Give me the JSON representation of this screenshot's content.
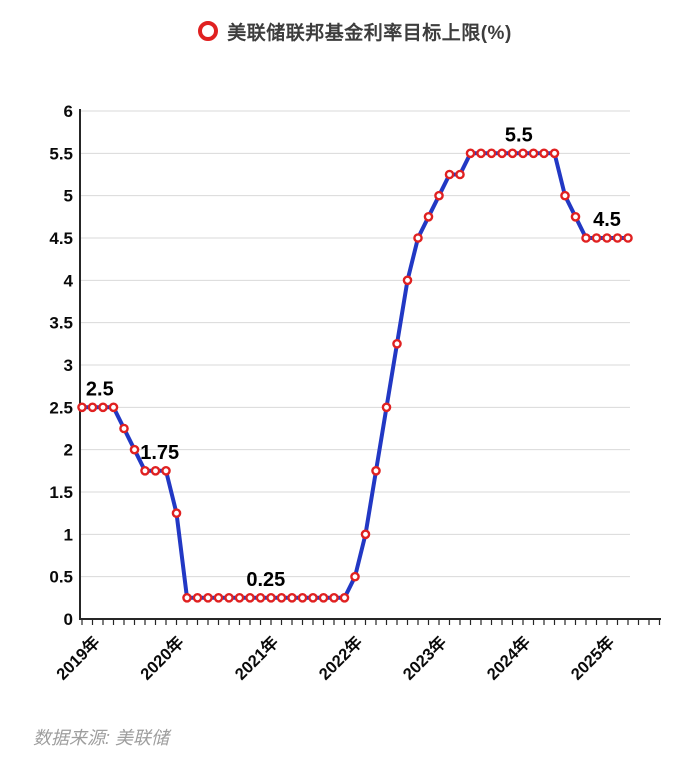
{
  "header": {
    "title": "美联储联邦基金利率目标上限(%)"
  },
  "footer": {
    "source": "数据来源: 美联储"
  },
  "chart_data": {
    "type": "line",
    "title": "美联储联邦基金利率目标上限(%)",
    "legend_position": "top",
    "grid": true,
    "ylim": [
      0,
      6
    ],
    "y_tick_step": 0.5,
    "y_tick_labels": [
      "0",
      "0.5",
      "1",
      "1.5",
      "2",
      "2.5",
      "3",
      "3.5",
      "4",
      "4.5",
      "5",
      "5.5",
      "6"
    ],
    "series": [
      {
        "name": "美联储联邦基金利率目标上限(%)",
        "values": [
          2.5,
          2.5,
          2.5,
          2.5,
          2.25,
          2,
          1.75,
          1.75,
          1.75,
          1.25,
          0.25,
          0.25,
          0.25,
          0.25,
          0.25,
          0.25,
          0.25,
          0.25,
          0.25,
          0.25,
          0.25,
          0.25,
          0.25,
          0.25,
          0.25,
          0.25,
          0.5,
          1,
          1.75,
          2.5,
          3.25,
          4,
          4.5,
          4.75,
          5,
          5.25,
          5.25,
          5.5,
          5.5,
          5.5,
          5.5,
          5.5,
          5.5,
          5.5,
          5.5,
          5.5,
          5,
          4.75,
          4.5,
          4.5,
          4.5,
          4.5,
          4.5
        ]
      }
    ],
    "x_year_ticks": [
      {
        "label": "2019年",
        "index": 0
      },
      {
        "label": "2020年",
        "index": 8
      },
      {
        "label": "2021年",
        "index": 17
      },
      {
        "label": "2022年",
        "index": 25
      },
      {
        "label": "2023年",
        "index": 33
      },
      {
        "label": "2024年",
        "index": 41
      },
      {
        "label": "2025年",
        "index": 49
      }
    ],
    "annotations": [
      {
        "text": "2.5",
        "at_index": 1.7,
        "value": 2.5
      },
      {
        "text": "1.75",
        "at_index": 7.4,
        "value": 1.75
      },
      {
        "text": "0.25",
        "at_index": 17.5,
        "value": 0.25
      },
      {
        "text": "5.5",
        "at_index": 41.6,
        "value": 5.5
      },
      {
        "text": "4.5",
        "at_index": 50,
        "value": 4.5
      }
    ],
    "colors": {
      "line": "#2238c4",
      "marker_stroke": "#e02121",
      "marker_fill": "#ffffff",
      "grid": "#d9d9d9",
      "axis": "#262626",
      "tick_label": "#0a0a0a",
      "data_label": "#000000",
      "title": "#3d3d3d",
      "source": "#9e9e9e"
    }
  }
}
